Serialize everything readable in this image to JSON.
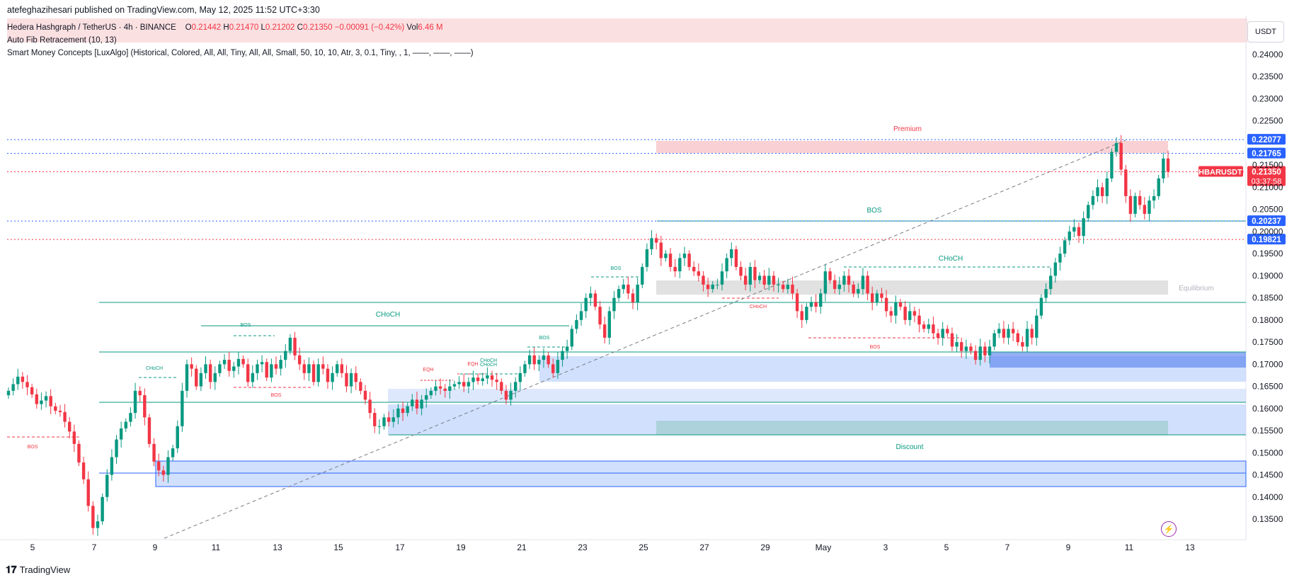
{
  "header": {
    "publish_line": "atefeghazihesari published on TradingView.com, May 12, 2025 11:52 UTC+3:30"
  },
  "legend": {
    "symbol_line": "Hedera Hashgraph / TetherUS · 4h · BINANCE",
    "open_label": "O",
    "open": "0.21442",
    "high_label": "H",
    "high": "0.21470",
    "low_label": "L",
    "low": "0.21202",
    "close_label": "C",
    "close": "0.21350",
    "change": "−0.00091 (−0.42%)",
    "vol_label": "Vol",
    "vol": "6.46 M",
    "indicator1": "Auto Fib Retracement (10, 13)",
    "indicator2": "Smart Money Concepts [LuxAlgo] (Historical, Colored, All, All, Tiny, All, All, Small, 50, 10, 10, Atr, 3, 0.1, Tiny, , 1, ——, ——, ——)"
  },
  "currency_button": "USDT",
  "footer": {
    "brand": "TradingView"
  },
  "colors": {
    "up": "#089981",
    "down": "#f23645",
    "blue_line": "#2962ff",
    "premium_zone": "#f8c9cd",
    "equilibrium_zone": "#d9d9d9",
    "discount_zone": "#a7cfd6",
    "order_block": "#c2d6fb"
  },
  "chart_data": {
    "type": "candlestick",
    "symbol": "HBARUSDT",
    "timeframe": "4h",
    "ylim": [
      0.13,
      0.242
    ],
    "y_ticks": [
      "0.24000",
      "0.23500",
      "0.23000",
      "0.22500",
      "0.21500",
      "0.21000",
      "0.20500",
      "0.20000",
      "0.19500",
      "0.19000",
      "0.18500",
      "0.18000",
      "0.17500",
      "0.17000",
      "0.16500",
      "0.16000",
      "0.15500",
      "0.15000",
      "0.14500",
      "0.14000",
      "0.13500"
    ],
    "x_ticks": [
      "5",
      "7",
      "9",
      "11",
      "13",
      "15",
      "17",
      "19",
      "21",
      "23",
      "25",
      "27",
      "29",
      "May",
      "3",
      "5",
      "7",
      "9",
      "11",
      "13"
    ],
    "price_labels": [
      {
        "text": "0.22077",
        "value": 0.22077,
        "color": "#2962ff"
      },
      {
        "text": "0.21765",
        "value": 0.21765,
        "color": "#2962ff"
      },
      {
        "text": "0.21350",
        "value": 0.2135,
        "color": "#f23645",
        "countdown": "03:37:58",
        "tag": "HBARUSDT"
      },
      {
        "text": "0.20237",
        "value": 0.20237,
        "color": "#2962ff"
      },
      {
        "text": "0.19821",
        "value": 0.19821,
        "color": "#2962ff"
      }
    ],
    "zones": [
      {
        "label": "Premium",
        "top": 0.221,
        "bottom": 0.2193,
        "from_day": 25.6,
        "to_day": 12.5
      },
      {
        "label": "Equilibrium",
        "top": 0.189,
        "bottom": 0.1858,
        "from_day": 25.6,
        "to_day": 12.5
      },
      {
        "label": "Discount",
        "top": 0.1575,
        "bottom": 0.156,
        "from_day": 25.6,
        "to_day": 12.5
      }
    ],
    "structure_labels": [
      {
        "text": "BOS",
        "value": 0.2045
      },
      {
        "text": "CHoCH",
        "value": 0.183
      },
      {
        "text": "CHoCH",
        "value": 0.1913
      },
      {
        "text": "BOS",
        "value": 0.1735
      },
      {
        "text": "BOS",
        "value": 0.178
      },
      {
        "text": "CHoCH",
        "value": 0.166
      },
      {
        "text": "CHoCH",
        "value": 0.1685
      },
      {
        "text": "BOS",
        "value": 0.1555
      },
      {
        "text": "BOS",
        "value": 0.1742
      },
      {
        "text": "EQH",
        "value": 0.1682
      },
      {
        "text": "EQH",
        "value": 0.1688
      },
      {
        "text": "CHoCH",
        "value": 0.1686
      },
      {
        "text": "BOS",
        "value": 0.19
      },
      {
        "text": "CHoCH",
        "value": 0.184
      },
      {
        "text": "BOS",
        "value": 0.148
      }
    ],
    "closes": [
      0.164,
      0.1655,
      0.1672,
      0.166,
      0.1648,
      0.1632,
      0.161,
      0.1618,
      0.1628,
      0.1605,
      0.1595,
      0.1592,
      0.157,
      0.1548,
      0.152,
      0.1478,
      0.144,
      0.138,
      0.133,
      0.1345,
      0.14,
      0.145,
      0.149,
      0.153,
      0.1555,
      0.157,
      0.159,
      0.164,
      0.163,
      0.158,
      0.152,
      0.148,
      0.146,
      0.145,
      0.149,
      0.151,
      0.156,
      0.164,
      0.17,
      0.169,
      0.165,
      0.168,
      0.17,
      0.166,
      0.168,
      0.17,
      0.171,
      0.1685,
      0.1695,
      0.1712,
      0.17,
      0.166,
      0.168,
      0.17,
      0.1705,
      0.167,
      0.17,
      0.169,
      0.171,
      0.173,
      0.176,
      0.172,
      0.17,
      0.168,
      0.17,
      0.166,
      0.17,
      0.169,
      0.166,
      0.168,
      0.17,
      0.168,
      0.165,
      0.168,
      0.166,
      0.164,
      0.162,
      0.159,
      0.156,
      0.156,
      0.158,
      0.157,
      0.158,
      0.16,
      0.159,
      0.1605,
      0.162,
      0.16,
      0.162,
      0.163,
      0.164,
      0.165,
      0.1645,
      0.164,
      0.165,
      0.1655,
      0.166,
      0.165,
      0.166,
      0.167,
      0.1662,
      0.1668,
      0.1675,
      0.1665,
      0.166,
      0.164,
      0.162,
      0.164,
      0.166,
      0.168,
      0.17,
      0.172,
      0.17,
      0.171,
      0.172,
      0.17,
      0.168,
      0.171,
      0.173,
      0.174,
      0.178,
      0.18,
      0.182,
      0.185,
      0.186,
      0.183,
      0.179,
      0.176,
      0.182,
      0.185,
      0.187,
      0.188,
      0.186,
      0.184,
      0.188,
      0.192,
      0.196,
      0.1985,
      0.1975,
      0.194,
      0.195,
      0.192,
      0.191,
      0.194,
      0.195,
      0.192,
      0.191,
      0.19,
      0.188,
      0.187,
      0.188,
      0.188,
      0.191,
      0.194,
      0.196,
      0.192,
      0.19,
      0.188,
      0.192,
      0.189,
      0.19,
      0.188,
      0.19,
      0.188,
      0.188,
      0.187,
      0.188,
      0.186,
      0.182,
      0.18,
      0.183,
      0.184,
      0.183,
      0.186,
      0.191,
      0.189,
      0.187,
      0.188,
      0.19,
      0.188,
      0.186,
      0.187,
      0.19,
      0.186,
      0.184,
      0.186,
      0.185,
      0.182,
      0.181,
      0.184,
      0.183,
      0.18,
      0.182,
      0.181,
      0.179,
      0.178,
      0.179,
      0.177,
      0.176,
      0.178,
      0.177,
      0.174,
      0.175,
      0.173,
      0.174,
      0.173,
      0.171,
      0.174,
      0.172,
      0.174,
      0.177,
      0.178,
      0.176,
      0.178,
      0.177,
      0.175,
      0.174,
      0.178,
      0.176,
      0.181,
      0.185,
      0.187,
      0.19,
      0.193,
      0.195,
      0.198,
      0.2,
      0.201,
      0.199,
      0.203,
      0.206,
      0.208,
      0.21,
      0.208,
      0.212,
      0.218,
      0.22,
      0.214,
      0.208,
      0.204,
      0.208,
      0.206,
      0.204,
      0.207,
      0.208,
      0.212,
      0.2165,
      0.2135
    ]
  }
}
